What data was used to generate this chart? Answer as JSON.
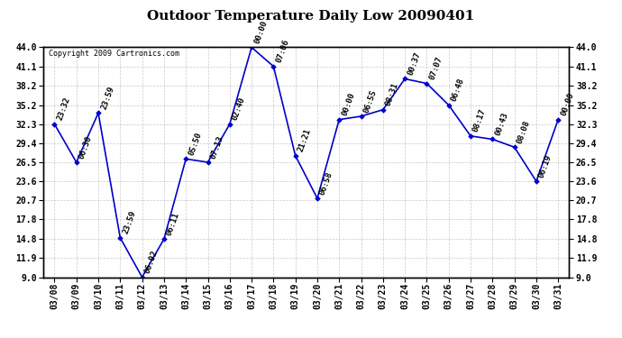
{
  "title": "Outdoor Temperature Daily Low 20090401",
  "copyright": "Copyright 2009 Cartronics.com",
  "dates": [
    "03/08",
    "03/09",
    "03/10",
    "03/11",
    "03/12",
    "03/13",
    "03/14",
    "03/15",
    "03/16",
    "03/17",
    "03/18",
    "03/19",
    "03/20",
    "03/21",
    "03/22",
    "03/23",
    "03/24",
    "03/25",
    "03/26",
    "03/27",
    "03/28",
    "03/29",
    "03/30",
    "03/31"
  ],
  "values": [
    32.3,
    26.5,
    34.0,
    15.0,
    9.0,
    14.8,
    27.0,
    26.5,
    32.3,
    44.0,
    41.1,
    27.5,
    21.0,
    33.0,
    33.5,
    34.5,
    39.2,
    38.5,
    35.2,
    30.5,
    30.0,
    28.8,
    23.6,
    33.0
  ],
  "labels": [
    "23:32",
    "06:30",
    "23:59",
    "23:59",
    "06:02",
    "06:11",
    "05:50",
    "07:13",
    "02:40",
    "00:00",
    "07:06",
    "21:21",
    "06:58",
    "00:00",
    "06:55",
    "08:31",
    "00:37",
    "07:07",
    "06:48",
    "08:17",
    "00:43",
    "08:08",
    "06:19",
    "00:00"
  ],
  "ylim": [
    9.0,
    44.0
  ],
  "yticks": [
    9.0,
    11.9,
    14.8,
    17.8,
    20.7,
    23.6,
    26.5,
    29.4,
    32.3,
    35.2,
    38.2,
    41.1,
    44.0
  ],
  "line_color": "#0000cc",
  "marker_color": "#0000cc",
  "bg_color": "#ffffff",
  "plot_bg_color": "#ffffff",
  "grid_color": "#bbbbbb",
  "title_fontsize": 11,
  "tick_fontsize": 7,
  "label_fontsize": 6.5,
  "copyright_fontsize": 6
}
